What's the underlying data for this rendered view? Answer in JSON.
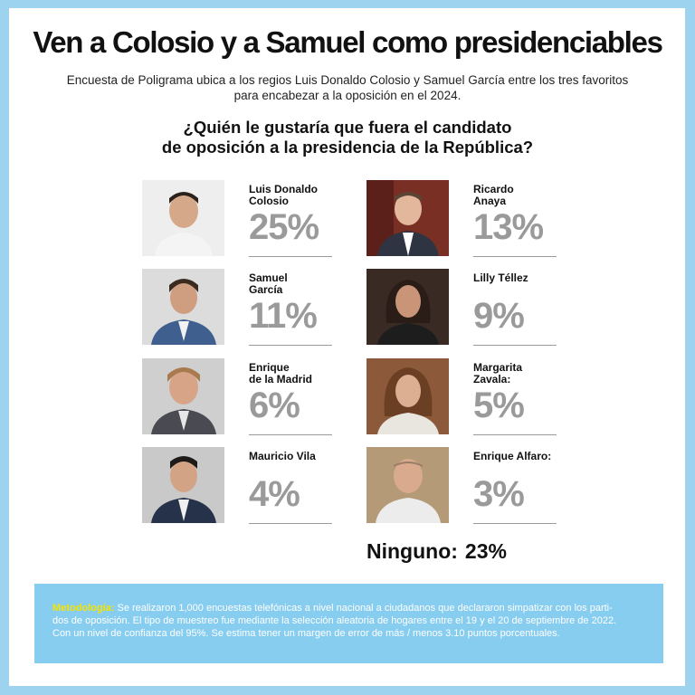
{
  "headline": "Ven a Colosio y a Samuel como presidenciables",
  "subheadline_1": "Encuesta de Poligrama ubica a los regios Luis Donaldo Colosio y Samuel García entre los tres favoritos",
  "subheadline_2": "para encabezar a la oposición en el 2024.",
  "question_1": "¿Quién le gustaría que fuera el candidato",
  "question_2": "de oposición a la presidencia de la República?",
  "candidates": [
    {
      "name_1": "Luis Donaldo",
      "name_2": "Colosio",
      "percent": "25%"
    },
    {
      "name_1": "Ricardo",
      "name_2": "Anaya",
      "percent": "13%"
    },
    {
      "name_1": "Samuel",
      "name_2": "García",
      "percent": "11%"
    },
    {
      "name_1": "Lilly Téllez",
      "name_2": "",
      "percent": "9%"
    },
    {
      "name_1": "Enrique",
      "name_2": "de la Madrid",
      "percent": "6%"
    },
    {
      "name_1": "Margarita",
      "name_2": "Zavala:",
      "percent": "5%"
    },
    {
      "name_1": "Mauricio Vila",
      "name_2": "",
      "percent": "4%"
    },
    {
      "name_1": "Enrique Alfaro:",
      "name_2": "",
      "percent": "3%"
    }
  ],
  "none": {
    "label": "Ninguno:",
    "percent": "23%"
  },
  "methodology": {
    "label": "Metodología:",
    "line_1": " Se realizaron 1,000 encuestas telefónicas a nivel nacional a ciudadanos que declararon simpatizar con los parti-",
    "line_2": "dos de oposición. El tipo de muestreo fue mediante la selección aleatoria de hogares entre el 19 y el 20 de septiembre de 2022.",
    "line_3": "Con un nivel de confianza del 95%. Se estima tener un margen de error de más / menos 3.10 puntos porcentuales."
  },
  "colors": {
    "border": "#9ed3ef",
    "percent_gray": "#9a9a9a",
    "methodology_bg": "#87cdf0",
    "methodology_label": "#f5e400"
  }
}
